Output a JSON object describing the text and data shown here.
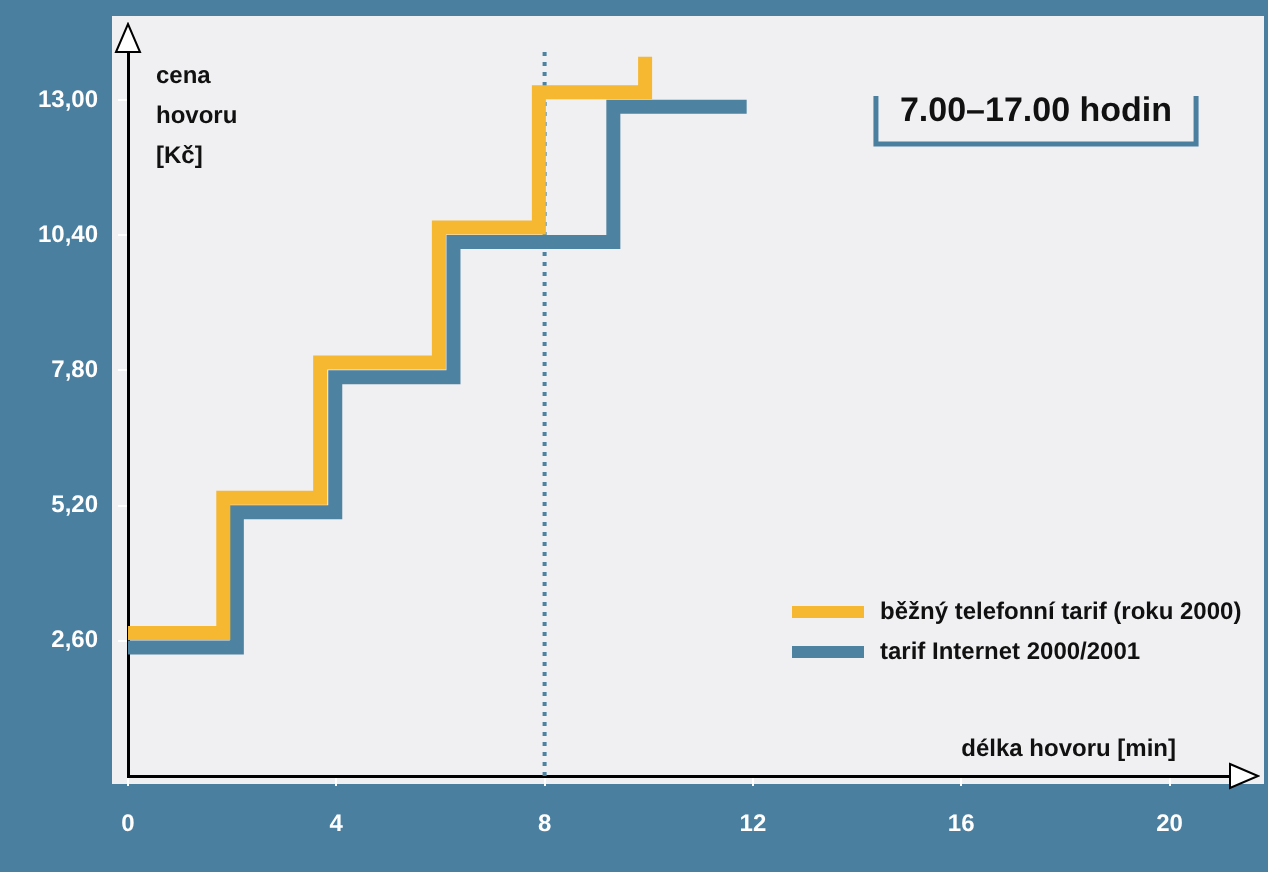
{
  "chart_data": {
    "type": "step",
    "title": "7.00–17.00 hodin",
    "xlabel": "délka hovoru [min]",
    "ylabel": "cena hovoru [Kč]",
    "xlim": [
      0,
      21.2
    ],
    "xticks": [
      0,
      4,
      8,
      12,
      16,
      20
    ],
    "ylim": [
      0,
      14
    ],
    "yticks": [
      {
        "value": 2.6,
        "label": "2,60"
      },
      {
        "value": 5.2,
        "label": "5,20"
      },
      {
        "value": 7.8,
        "label": "7,80"
      },
      {
        "value": 10.4,
        "label": "10,40"
      },
      {
        "value": 13,
        "label": "13,00"
      }
    ],
    "series": [
      {
        "name": "běžný telefonní tarif (roku 2000)",
        "color": "#f6b731",
        "x": [
          0,
          1.83,
          3.69,
          5.97,
          7.89,
          9.93
        ],
        "values": [
          2.75,
          5.35,
          7.95,
          10.55,
          13.15,
          13.83
        ]
      },
      {
        "name": "tarif Internet 2000/2001",
        "color": "#4d82a0",
        "x": [
          0,
          2.09,
          3.98,
          6.25,
          9.32,
          11.88
        ],
        "values": [
          2.47,
          5.07,
          7.67,
          10.27,
          12.87,
          12.87
        ]
      }
    ],
    "ref_lines": [
      {
        "axis": "x",
        "value": 8,
        "color": "#4d82a0",
        "line_style": "dotted"
      }
    ],
    "grid": false,
    "legend": "bottom right"
  }
}
